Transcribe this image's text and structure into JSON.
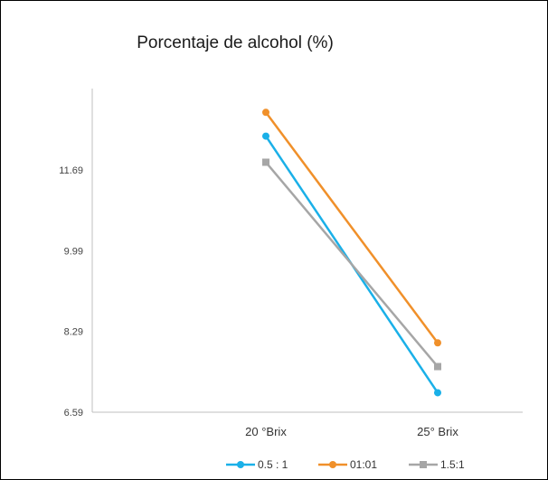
{
  "chart_data": {
    "type": "line",
    "title": "Porcentaje de alcohol (%)",
    "xlabel": "",
    "ylabel": "",
    "categories": [
      "20 °Brix",
      "25° Brix"
    ],
    "y_ticks": [
      "11.69",
      "9.99",
      "8.29",
      "6.59"
    ],
    "ylim": [
      6.59,
      13.4
    ],
    "grid": false,
    "legend": "bottom",
    "series": [
      {
        "name": "0.5 : 1",
        "values": [
          12.4,
          7.0
        ],
        "color": "#1ab0e8",
        "marker": "circle"
      },
      {
        "name": "01:01",
        "values": [
          12.9,
          8.05
        ],
        "color": "#f0902a",
        "marker": "circle"
      },
      {
        "name": "1.5:1",
        "values": [
          11.85,
          7.55
        ],
        "color": "#a6a6a6",
        "marker": "square"
      }
    ]
  }
}
